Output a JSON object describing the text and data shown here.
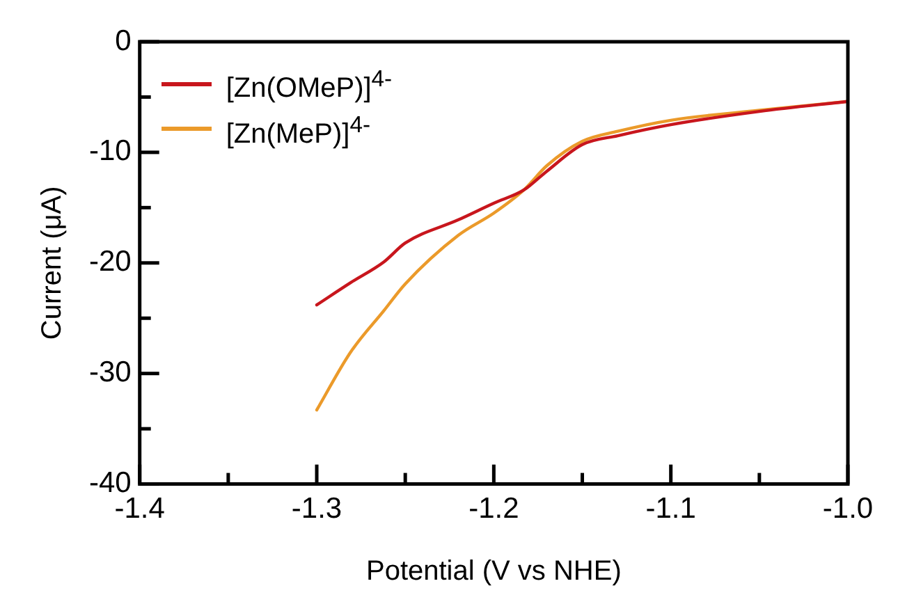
{
  "chart_data": {
    "type": "line",
    "xlabel": "Potential (V vs NHE)",
    "ylabel": "Current (μA)",
    "xlim": [
      -1.4,
      -1.0
    ],
    "xticks": [
      -1.4,
      {
        "value": -1.35,
        "label": null
      },
      -1.3,
      {
        "value": -1.25,
        "label": null
      },
      -1.2,
      {
        "value": -1.15,
        "label": null
      },
      -1.1,
      {
        "value": -1.05,
        "label": null
      },
      {
        "value": -1.0,
        "label": "-1.0"
      }
    ],
    "ylim": [
      -40,
      0
    ],
    "yticks": [
      -40,
      {
        "value": -35,
        "label": null
      },
      -30,
      {
        "value": -25,
        "label": null
      },
      -20,
      {
        "value": -15,
        "label": null
      },
      -10,
      {
        "value": -5,
        "label": null
      },
      0
    ],
    "legend": "top left",
    "grid": false,
    "marker": "none",
    "line_style": "solid",
    "series": [
      {
        "name": "[Zn(OMeP)]$^{4-}$",
        "color": "#c8161d",
        "x": [
          -1.3,
          -1.281,
          -1.262,
          -1.25,
          -1.22,
          -1.2,
          -1.183,
          -1.17,
          -1.15,
          -1.13,
          -1.1,
          -1.05,
          -1.0
        ],
        "values": [
          -23.8,
          -21.8,
          -19.9,
          -18.2,
          -16.1,
          -14.6,
          -13.4,
          -11.7,
          -9.3,
          -8.5,
          -7.5,
          -6.3,
          -5.4
        ]
      },
      {
        "name": "[Zn(MeP)]$^{4-}$",
        "color": "#eb9a2a",
        "x": [
          -1.3,
          -1.281,
          -1.262,
          -1.25,
          -1.22,
          -1.2,
          -1.183,
          -1.17,
          -1.15,
          -1.13,
          -1.1,
          -1.05,
          -1.0
        ],
        "values": [
          -33.3,
          -28.1,
          -24.3,
          -21.9,
          -17.5,
          -15.5,
          -13.4,
          -11.2,
          -9.0,
          -8.1,
          -7.1,
          -6.2,
          -5.4
        ]
      }
    ]
  }
}
